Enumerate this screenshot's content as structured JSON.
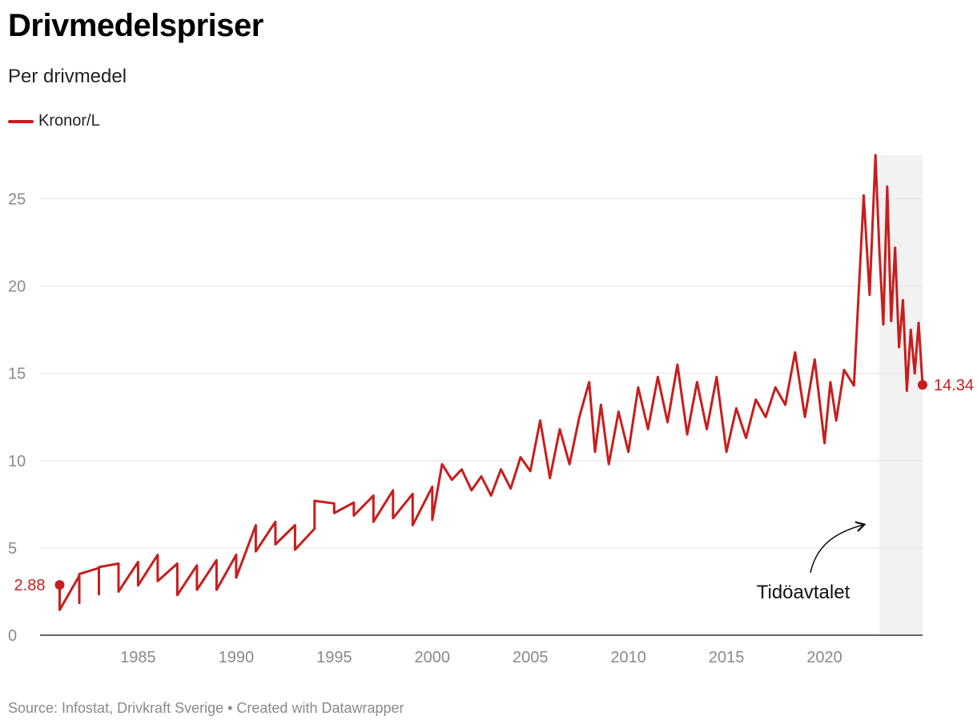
{
  "header": {
    "title": "Drivmedelspriser",
    "subtitle": "Per drivmedel"
  },
  "legend": {
    "label": "Kronor/L",
    "color": "#c71e1d"
  },
  "footer": {
    "source_text": "Source: Infostat, Drivkraft Sverige • Created with Datawrapper"
  },
  "chart_data": {
    "type": "line",
    "title": "Drivmedelspriser",
    "subtitle": "Per drivmedel",
    "xlabel": "",
    "ylabel": "",
    "xlim": [
      1980,
      2025
    ],
    "ylim": [
      0,
      27.5
    ],
    "x_ticks": [
      1985,
      1990,
      1995,
      2000,
      2005,
      2010,
      2015,
      2020
    ],
    "y_ticks": [
      0,
      5,
      10,
      15,
      20,
      25
    ],
    "grid": true,
    "series": [
      {
        "name": "Kronor/L",
        "color": "#c71e1d",
        "x": [
          1981.0,
          1981.0,
          1982.0,
          1982.0,
          1982.0,
          1983.0,
          1983.0,
          1983.0,
          1984.0,
          1984.0,
          1985.0,
          1985.0,
          1986.0,
          1986.0,
          1987.0,
          1987.0,
          1988.0,
          1988.0,
          1989.0,
          1989.0,
          1990.0,
          1990.0,
          1991.0,
          1991.0,
          1992.0,
          1992.0,
          1993.0,
          1993.0,
          1994.0,
          1994.0,
          1995.0,
          1995.0,
          1996.0,
          1996.0,
          1997.0,
          1997.0,
          1998.0,
          1998.0,
          1999.0,
          1999.0,
          2000.0,
          2000.0,
          2000.5,
          2001.0,
          2001.5,
          2002.0,
          2002.5,
          2003.0,
          2003.5,
          2004.0,
          2004.5,
          2005.0,
          2005.5,
          2006.0,
          2006.5,
          2007.0,
          2007.5,
          2008.0,
          2008.3,
          2008.6,
          2009.0,
          2009.5,
          2010.0,
          2010.5,
          2011.0,
          2011.5,
          2012.0,
          2012.5,
          2013.0,
          2013.5,
          2014.0,
          2014.5,
          2015.0,
          2015.5,
          2016.0,
          2016.5,
          2017.0,
          2017.5,
          2018.0,
          2018.5,
          2019.0,
          2019.5,
          2020.0,
          2020.3,
          2020.6,
          2021.0,
          2021.5,
          2022.0,
          2022.3,
          2022.6,
          2022.8,
          2023.0,
          2023.2,
          2023.4,
          2023.6,
          2023.8,
          2024.0,
          2024.2,
          2024.4,
          2024.6,
          2024.8,
          2025.0
        ],
        "values": [
          2.88,
          1.45,
          3.4,
          1.85,
          3.5,
          3.85,
          2.35,
          3.9,
          4.1,
          2.5,
          4.2,
          2.85,
          4.6,
          3.1,
          4.1,
          2.3,
          4.0,
          2.6,
          4.3,
          2.6,
          4.6,
          3.3,
          6.3,
          4.8,
          6.5,
          5.2,
          6.3,
          4.9,
          6.1,
          7.7,
          7.55,
          7.0,
          7.6,
          6.85,
          8.0,
          6.5,
          8.3,
          6.7,
          8.1,
          6.3,
          8.5,
          6.6,
          9.8,
          8.9,
          9.5,
          8.3,
          9.1,
          8.0,
          9.5,
          8.4,
          10.2,
          9.4,
          12.3,
          9.0,
          11.8,
          9.8,
          12.5,
          14.5,
          10.5,
          13.2,
          9.8,
          12.8,
          10.5,
          14.2,
          11.8,
          14.8,
          12.2,
          15.5,
          11.5,
          14.5,
          11.8,
          14.8,
          10.5,
          13.0,
          11.3,
          13.5,
          12.5,
          14.2,
          13.2,
          16.2,
          12.5,
          15.8,
          11.0,
          14.5,
          12.3,
          15.2,
          14.3,
          25.2,
          19.5,
          27.5,
          22.0,
          17.8,
          25.7,
          18.0,
          22.2,
          16.5,
          19.2,
          14.0,
          17.5,
          15.0,
          17.9,
          14.34
        ]
      }
    ],
    "annotations": [
      {
        "text": "2.88",
        "x": 1981.0,
        "y": 2.88
      },
      {
        "text": "14.34",
        "x": 2025.0,
        "y": 14.34
      }
    ],
    "highlight_range": {
      "label": "Tidöavtalet",
      "x_start": 2022.8,
      "x_end": 2025.0
    }
  }
}
